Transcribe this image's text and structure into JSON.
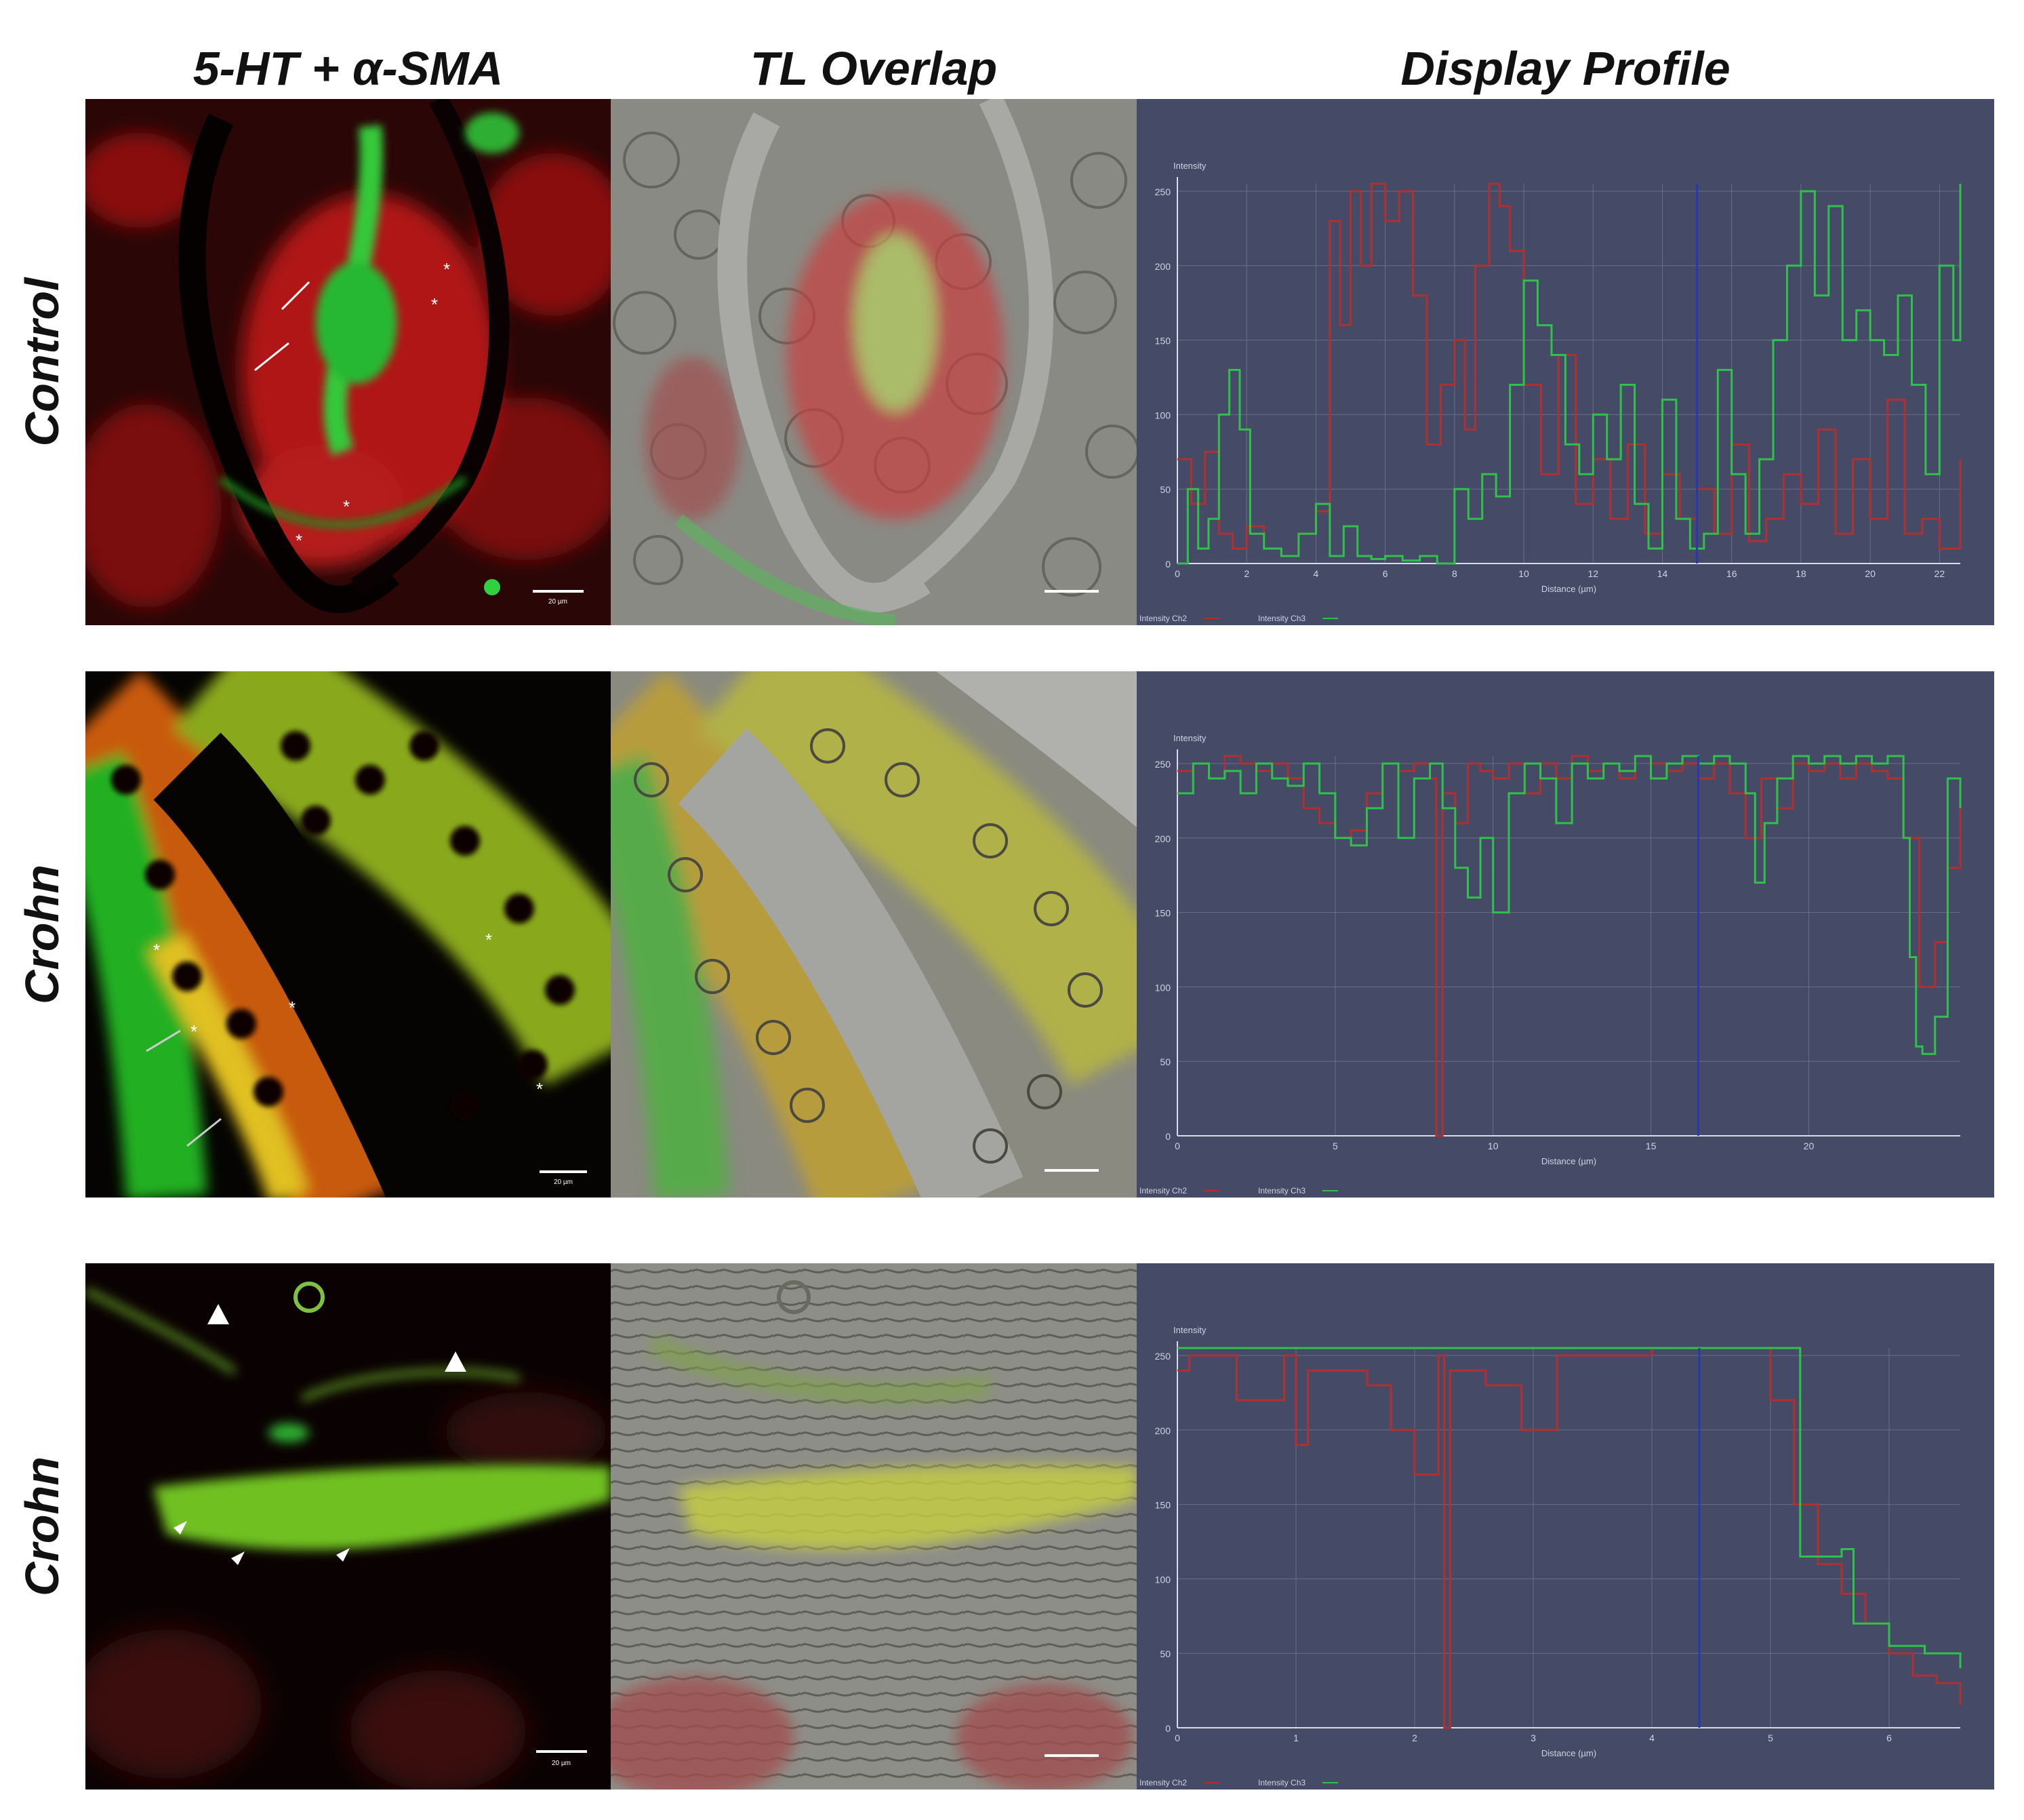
{
  "figure": {
    "column_titles": [
      "5-HT + α-SMA",
      "TL Overlap",
      "Display Profile"
    ],
    "row_labels": [
      "Control",
      "Crohn",
      "Crohn"
    ]
  },
  "scale_bar_labels": [
    "20 µm",
    "20 µm",
    "20 µm"
  ],
  "colors": {
    "ch2": "#b03030",
    "ch3": "#2fc24a",
    "cursor": "#2838b0",
    "panel_bg": "#454a66",
    "grid": "#6a6f8a",
    "axis_text": "#d0d3e0"
  },
  "chart_data": [
    {
      "type": "line",
      "title": "",
      "xlabel": "Distance (µm)",
      "ylabel": "Intensity",
      "xlim": [
        0,
        22.6
      ],
      "ylim": [
        0,
        255
      ],
      "xticks": [
        0,
        2,
        4,
        6,
        8,
        10,
        12,
        14,
        16,
        18,
        20,
        22
      ],
      "yticks": [
        0,
        50,
        100,
        150,
        200,
        250
      ],
      "cursor_x": 15.0,
      "legend": [
        "Intensity Ch2",
        "Intensity Ch3"
      ],
      "series": [
        {
          "name": "Intensity Ch2",
          "color": "#b03030",
          "x": [
            0,
            0.4,
            0.8,
            1.2,
            1.6,
            2.0,
            2.5,
            3.0,
            3.5,
            4.0,
            4.4,
            4.7,
            5.0,
            5.3,
            5.6,
            6.0,
            6.4,
            6.8,
            7.2,
            7.6,
            8.0,
            8.3,
            8.6,
            9.0,
            9.3,
            9.6,
            10.0,
            10.5,
            11.0,
            11.5,
            12.0,
            12.5,
            13.0,
            13.5,
            14.0,
            14.5,
            15.0,
            15.5,
            16.0,
            16.5,
            17.0,
            17.5,
            18.0,
            18.5,
            19.0,
            19.5,
            20.0,
            20.5,
            21.0,
            21.5,
            22.0,
            22.6
          ],
          "y": [
            70,
            40,
            75,
            20,
            10,
            25,
            10,
            5,
            20,
            35,
            230,
            160,
            250,
            200,
            255,
            230,
            250,
            180,
            80,
            120,
            150,
            90,
            200,
            255,
            240,
            210,
            120,
            60,
            140,
            40,
            70,
            30,
            80,
            20,
            60,
            30,
            50,
            20,
            80,
            15,
            30,
            60,
            40,
            90,
            20,
            70,
            30,
            110,
            20,
            30,
            10,
            70
          ]
        },
        {
          "name": "Intensity Ch3",
          "color": "#2fc24a",
          "x": [
            0,
            0.3,
            0.6,
            0.9,
            1.2,
            1.5,
            1.8,
            2.1,
            2.5,
            3.0,
            3.5,
            4.0,
            4.4,
            4.8,
            5.2,
            5.6,
            6.0,
            6.5,
            7.0,
            7.5,
            8.0,
            8.4,
            8.8,
            9.2,
            9.6,
            10.0,
            10.4,
            10.8,
            11.2,
            11.6,
            12.0,
            12.4,
            12.8,
            13.2,
            13.6,
            14.0,
            14.4,
            14.8,
            15.2,
            15.6,
            16.0,
            16.4,
            16.8,
            17.2,
            17.6,
            18.0,
            18.4,
            18.8,
            19.2,
            19.6,
            20.0,
            20.4,
            20.8,
            21.2,
            21.6,
            22.0,
            22.4,
            22.6
          ],
          "y": [
            0,
            50,
            10,
            30,
            100,
            130,
            90,
            20,
            10,
            5,
            20,
            40,
            5,
            25,
            5,
            3,
            5,
            2,
            5,
            0,
            50,
            30,
            60,
            45,
            120,
            190,
            160,
            140,
            80,
            60,
            100,
            70,
            120,
            40,
            10,
            110,
            30,
            10,
            20,
            130,
            60,
            20,
            70,
            150,
            200,
            250,
            180,
            240,
            150,
            170,
            150,
            140,
            180,
            120,
            60,
            200,
            150,
            255
          ]
        }
      ]
    },
    {
      "type": "line",
      "title": "",
      "xlabel": "Distance (µm)",
      "ylabel": "Intensity",
      "xlim": [
        0,
        24.8
      ],
      "ylim": [
        0,
        255
      ],
      "xticks": [
        0,
        5,
        10,
        15,
        20
      ],
      "yticks": [
        0,
        50,
        100,
        150,
        200,
        250
      ],
      "cursor_x": 16.5,
      "legend": [
        "Intensity Ch2",
        "Intensity Ch3"
      ],
      "series": [
        {
          "name": "Intensity Ch2",
          "color": "#b03030",
          "x": [
            0,
            0.5,
            1,
            1.5,
            2,
            2.5,
            3,
            3.5,
            4,
            4.5,
            5,
            5.5,
            6,
            6.5,
            7,
            7.5,
            8,
            8.2,
            8.4,
            8.8,
            9.2,
            9.6,
            10,
            10.5,
            11,
            11.5,
            12,
            12.5,
            13,
            13.5,
            14,
            14.5,
            15,
            15.5,
            16,
            16.5,
            17,
            17.5,
            18,
            18.5,
            19,
            19.5,
            20,
            20.5,
            21,
            21.5,
            22,
            22.5,
            23,
            23.5,
            24,
            24.4,
            24.8
          ],
          "y": [
            245,
            250,
            240,
            255,
            250,
            245,
            250,
            240,
            220,
            210,
            200,
            205,
            230,
            250,
            245,
            250,
            240,
            0,
            230,
            210,
            250,
            245,
            240,
            250,
            230,
            250,
            240,
            255,
            245,
            250,
            240,
            255,
            250,
            245,
            250,
            240,
            250,
            230,
            200,
            240,
            220,
            250,
            245,
            250,
            240,
            250,
            245,
            240,
            200,
            100,
            130,
            180,
            220
          ]
        },
        {
          "name": "Intensity Ch3",
          "color": "#2fc24a",
          "x": [
            0,
            0.5,
            1,
            1.5,
            2,
            2.5,
            3,
            3.5,
            4,
            4.5,
            5,
            5.5,
            6,
            6.5,
            7,
            7.5,
            8,
            8.4,
            8.8,
            9.2,
            9.6,
            10,
            10.5,
            11,
            11.5,
            12,
            12.5,
            13,
            13.5,
            14,
            14.5,
            15,
            15.5,
            16,
            16.5,
            17,
            17.5,
            18,
            18.3,
            18.6,
            19,
            19.5,
            20,
            20.5,
            21,
            21.5,
            22,
            22.5,
            23,
            23.2,
            23.4,
            23.6,
            24,
            24.4,
            24.8
          ],
          "y": [
            230,
            250,
            240,
            245,
            230,
            250,
            240,
            235,
            250,
            230,
            200,
            195,
            220,
            250,
            200,
            240,
            250,
            220,
            180,
            160,
            200,
            150,
            230,
            250,
            240,
            210,
            250,
            240,
            250,
            245,
            255,
            240,
            250,
            255,
            250,
            255,
            250,
            230,
            170,
            210,
            240,
            255,
            250,
            255,
            250,
            255,
            250,
            255,
            200,
            120,
            60,
            55,
            80,
            240,
            220
          ]
        }
      ]
    },
    {
      "type": "line",
      "title": "",
      "xlabel": "Distance (µm)",
      "ylabel": "Intensity",
      "xlim": [
        0,
        6.6
      ],
      "ylim": [
        0,
        255
      ],
      "xticks": [
        0,
        1,
        2,
        3,
        4,
        5,
        6
      ],
      "yticks": [
        0,
        50,
        100,
        150,
        200,
        250
      ],
      "cursor_x": 4.4,
      "legend": [
        "Intensity Ch2",
        "Intensity Ch3"
      ],
      "series": [
        {
          "name": "Intensity Ch2",
          "color": "#b03030",
          "x": [
            0,
            0.1,
            0.5,
            0.9,
            1.0,
            1.1,
            1.6,
            1.8,
            2.0,
            2.2,
            2.25,
            2.3,
            2.6,
            2.9,
            3.2,
            4.0,
            4.9,
            5.0,
            5.2,
            5.4,
            5.6,
            5.8,
            6.0,
            6.2,
            6.4,
            6.6
          ],
          "y": [
            240,
            250,
            220,
            250,
            190,
            240,
            230,
            200,
            170,
            250,
            0,
            240,
            230,
            200,
            250,
            255,
            255,
            220,
            150,
            110,
            90,
            70,
            50,
            35,
            30,
            15
          ]
        },
        {
          "name": "Intensity Ch3",
          "color": "#2fc24a",
          "x": [
            0,
            0.5,
            1,
            2,
            3,
            4,
            5,
            5.2,
            5.25,
            5.6,
            5.7,
            6.0,
            6.3,
            6.6
          ],
          "y": [
            255,
            255,
            255,
            255,
            255,
            255,
            255,
            255,
            115,
            120,
            70,
            55,
            50,
            40
          ]
        }
      ]
    }
  ]
}
